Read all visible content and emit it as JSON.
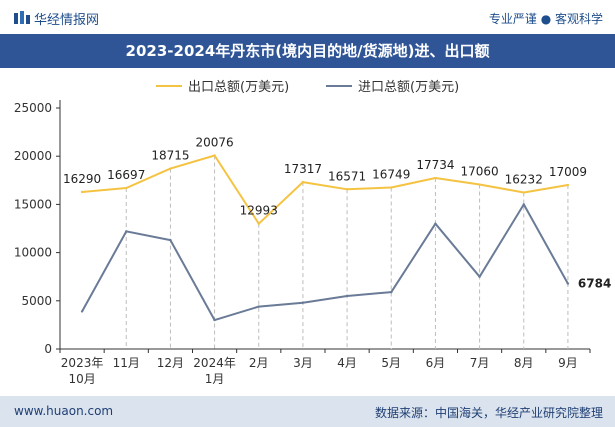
{
  "header": {
    "brand": "华经情报网",
    "slogan": "专业严谨 ● 客观科学",
    "title": "2023-2024年丹东市(境内目的地/货源地)进、出口额"
  },
  "footer": {
    "site": "www.huaon.com",
    "source": "数据来源：中国海关，华经产业研究院整理"
  },
  "colors": {
    "export": "#f5c342",
    "import": "#6a7b97",
    "title_bg": "#2f5597",
    "footer_bg": "#dbe3ef"
  },
  "chart_data": {
    "type": "line",
    "categories": [
      "2023年\n10月",
      "11月",
      "12月",
      "2024年\n1月",
      "2月",
      "3月",
      "4月",
      "5月",
      "6月",
      "7月",
      "8月",
      "9月"
    ],
    "series": [
      {
        "name": "出口总额(万美元)",
        "values": [
          16290,
          16697,
          18715,
          20076,
          12993,
          17317,
          16571,
          16749,
          17734,
          17060,
          16232,
          17009
        ],
        "labeled": true
      },
      {
        "name": "进口总额(万美元)",
        "values": [
          3900,
          12200,
          11300,
          3000,
          4400,
          4800,
          5500,
          5900,
          13000,
          7500,
          15000,
          6784
        ],
        "labeled_last": "6784"
      }
    ],
    "ylim": [
      0,
      25000
    ],
    "yticks": [
      0,
      5000,
      10000,
      15000,
      20000,
      25000
    ],
    "xlabel": "",
    "ylabel": "",
    "legend": "top",
    "grid": false,
    "drop_lines": true
  }
}
